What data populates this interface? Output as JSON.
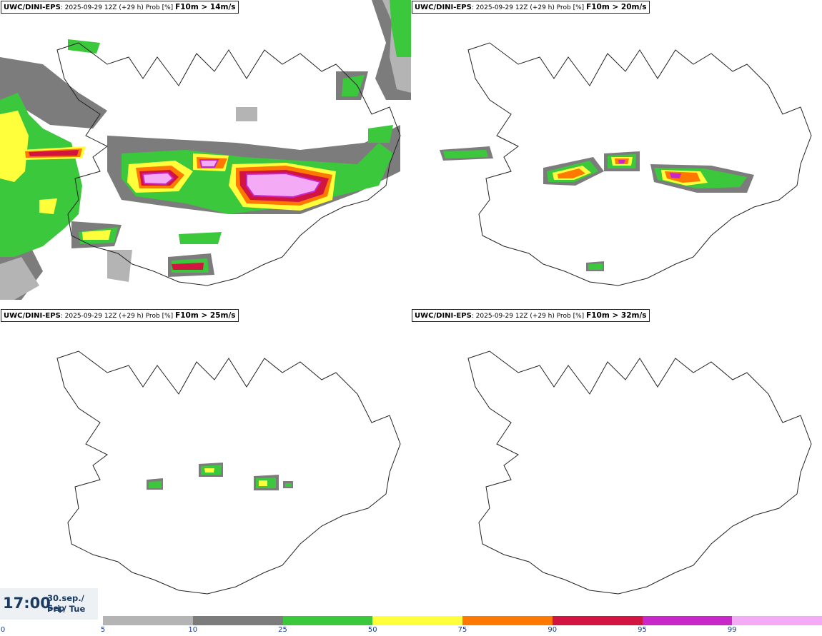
{
  "panels": [
    {
      "source": "UWC/DINI-EPS",
      "run": "2025-09-29 12Z (+29 h) Prob [%]",
      "parameter": "F10m > 14m/s"
    },
    {
      "source": "UWC/DINI-EPS",
      "run": "2025-09-29 12Z (+29 h) Prob [%]",
      "parameter": "F10m > 20m/s"
    },
    {
      "source": "UWC/DINI-EPS",
      "run": "2025-09-29 12Z (+29 h) Prob [%]",
      "parameter": "F10m > 25m/s"
    },
    {
      "source": "UWC/DINI-EPS",
      "run": "2025-09-29 12Z (+29 h) Prob [%]",
      "parameter": "F10m > 32m/s"
    }
  ],
  "valid_time": {
    "time": "17:00",
    "date_line1": "30.sep./ Sep",
    "date_line2": "Þri./ Tue"
  },
  "legend": {
    "labels": [
      "0",
      "5",
      "10",
      "25",
      "50",
      "75",
      "90",
      "95",
      "99"
    ],
    "colors": [
      "#b4b4b4",
      "#7c7c7c",
      "#3cc83c",
      "#ffff3c",
      "#ff7800",
      "#d21441",
      "#c828c8",
      "#f5aaf5"
    ]
  }
}
